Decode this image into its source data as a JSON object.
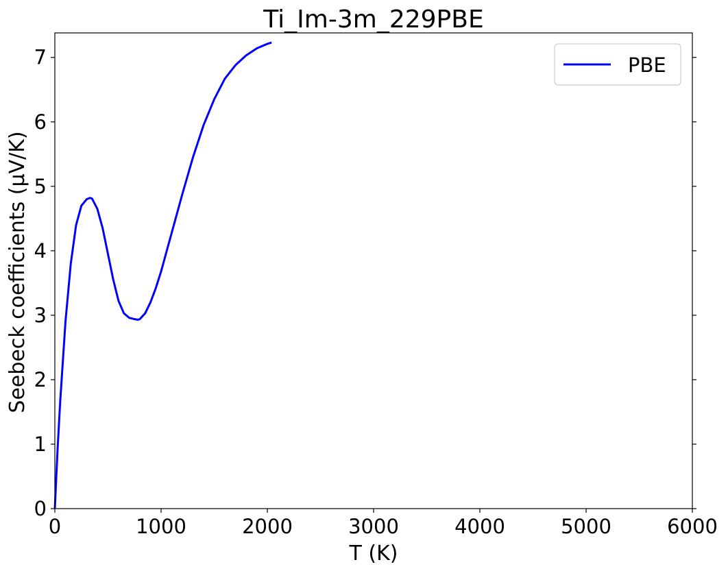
{
  "chart_data": {
    "type": "line",
    "title": "Ti_Im-3m_229PBE",
    "xlabel": "T (K)",
    "ylabel": "Seebeck coefficients (μV/K)",
    "xlim": [
      0,
      6000
    ],
    "ylim": [
      0,
      7.38
    ],
    "x_ticks": [
      0,
      1000,
      2000,
      3000,
      4000,
      5000,
      6000
    ],
    "x_tick_labels": [
      "0",
      "1000",
      "2000",
      "3000",
      "4000",
      "5000",
      "6000"
    ],
    "y_ticks": [
      0,
      1,
      2,
      3,
      4,
      5,
      6,
      7
    ],
    "y_tick_labels": [
      "0",
      "1",
      "2",
      "3",
      "4",
      "5",
      "6",
      "7"
    ],
    "grid": false,
    "legend_position": "top-right",
    "series": [
      {
        "name": "PBE",
        "color": "#0000ff",
        "x": [
          0,
          25,
          50,
          100,
          150,
          200,
          250,
          300,
          330,
          350,
          400,
          450,
          500,
          550,
          600,
          650,
          700,
          750,
          780,
          800,
          850,
          900,
          950,
          1000,
          1100,
          1200,
          1300,
          1400,
          1500,
          1600,
          1700,
          1800,
          1900,
          2000,
          2040
        ],
        "y": [
          0,
          0.9,
          1.65,
          2.9,
          3.8,
          4.4,
          4.7,
          4.8,
          4.82,
          4.81,
          4.65,
          4.35,
          3.95,
          3.55,
          3.22,
          3.03,
          2.96,
          2.94,
          2.93,
          2.94,
          3.03,
          3.2,
          3.42,
          3.68,
          4.28,
          4.88,
          5.45,
          5.95,
          6.35,
          6.67,
          6.88,
          7.03,
          7.14,
          7.21,
          7.23
        ]
      }
    ]
  }
}
